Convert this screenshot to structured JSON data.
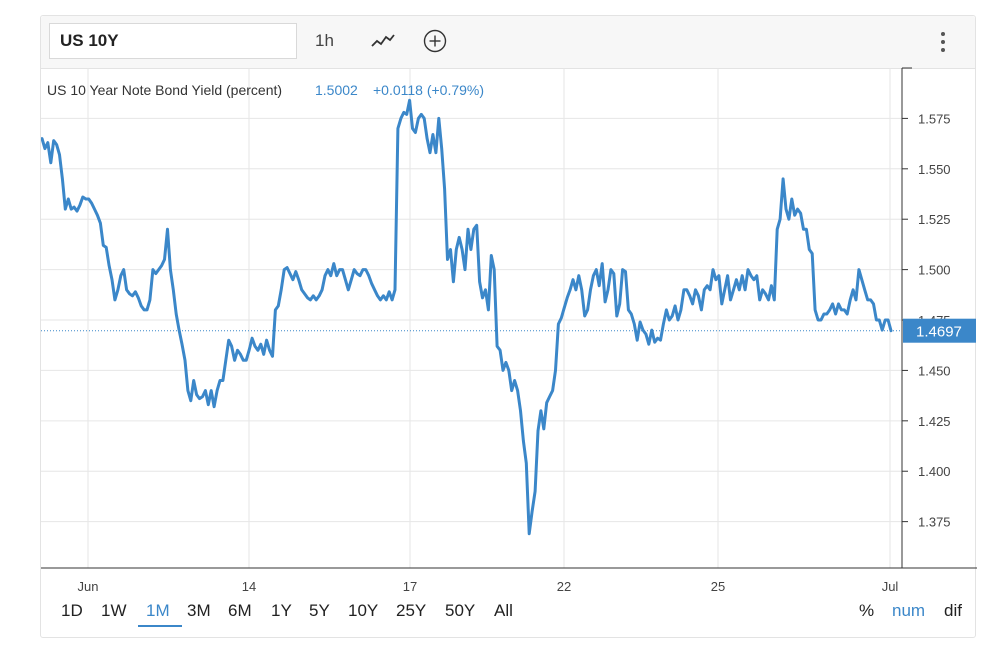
{
  "toolbar": {
    "symbol": "US 10Y",
    "interval": "1h",
    "icons": [
      "line-style-icon",
      "add-circle-icon",
      "more-vertical-icon"
    ]
  },
  "legend": {
    "title": "US 10 Year Note Bond Yield (percent)",
    "value": "1.5002",
    "change": "+0.0118 (+0.79%)"
  },
  "last_price_label": "1.4697",
  "periods": [
    "1D",
    "1W",
    "1M",
    "3M",
    "6M",
    "1Y",
    "5Y",
    "10Y",
    "25Y",
    "50Y",
    "All"
  ],
  "active_period": "1M",
  "scale_options": [
    "%",
    "num",
    "dif"
  ],
  "active_scale": "num",
  "colors": {
    "line": "#3b87c9",
    "accent": "#3b87c9",
    "grid": "#e6e6e6"
  },
  "chart_data": {
    "type": "line",
    "x_tick_labels": [
      "Jun",
      "14",
      "17",
      "22",
      "25",
      "Jul"
    ],
    "y_tick_labels": [
      "1.375",
      "1.400",
      "1.425",
      "1.450",
      "1.475",
      "1.500",
      "1.525",
      "1.550",
      "1.575"
    ],
    "ylim": [
      1.352,
      1.6
    ],
    "y_axis_position": "right",
    "grid": true,
    "last_value": 1.4697,
    "series": [
      {
        "values": [
          1.565,
          1.56,
          1.563,
          1.553,
          1.564,
          1.562,
          1.557,
          1.545,
          1.53,
          1.535,
          1.53,
          1.531,
          1.529,
          1.532,
          1.536,
          1.535,
          1.535,
          1.533,
          1.53,
          1.527,
          1.523,
          1.512,
          1.511,
          1.502,
          1.495,
          1.485,
          1.49,
          1.497,
          1.5,
          1.49,
          1.488,
          1.487,
          1.489,
          1.486,
          1.482,
          1.48,
          1.48,
          1.485,
          1.5,
          1.498,
          1.5,
          1.502,
          1.505,
          1.52,
          1.5,
          1.49,
          1.478,
          1.47,
          1.463,
          1.455,
          1.44,
          1.435,
          1.445,
          1.438,
          1.436,
          1.437,
          1.44,
          1.433,
          1.44,
          1.432,
          1.44,
          1.445,
          1.445,
          1.455,
          1.465,
          1.462,
          1.455,
          1.46,
          1.458,
          1.455,
          1.455,
          1.46,
          1.466,
          1.462,
          1.46,
          1.463,
          1.458,
          1.465,
          1.46,
          1.457,
          1.48,
          1.482,
          1.49,
          1.5,
          1.501,
          1.498,
          1.495,
          1.499,
          1.495,
          1.49,
          1.488,
          1.486,
          1.485,
          1.487,
          1.485,
          1.487,
          1.49,
          1.497,
          1.5,
          1.497,
          1.503,
          1.497,
          1.5,
          1.5,
          1.495,
          1.49,
          1.495,
          1.5,
          1.498,
          1.497,
          1.5,
          1.5,
          1.497,
          1.493,
          1.49,
          1.487,
          1.485,
          1.487,
          1.485,
          1.489,
          1.485,
          1.49,
          1.57,
          1.575,
          1.578,
          1.577,
          1.584,
          1.57,
          1.568,
          1.575,
          1.577,
          1.575,
          1.565,
          1.558,
          1.567,
          1.558,
          1.575,
          1.56,
          1.54,
          1.505,
          1.51,
          1.494,
          1.51,
          1.516,
          1.51,
          1.5,
          1.52,
          1.51,
          1.52,
          1.522,
          1.494,
          1.486,
          1.49,
          1.48,
          1.507,
          1.5,
          1.462,
          1.46,
          1.45,
          1.454,
          1.45,
          1.44,
          1.445,
          1.44,
          1.43,
          1.415,
          1.404,
          1.369,
          1.38,
          1.39,
          1.42,
          1.43,
          1.421,
          1.434,
          1.437,
          1.44,
          1.45,
          1.473,
          1.476,
          1.481,
          1.486,
          1.49,
          1.495,
          1.49,
          1.497,
          1.49,
          1.477,
          1.48,
          1.49,
          1.497,
          1.5,
          1.492,
          1.503,
          1.484,
          1.49,
          1.5,
          1.498,
          1.477,
          1.483,
          1.5,
          1.499,
          1.48,
          1.478,
          1.473,
          1.465,
          1.474,
          1.47,
          1.468,
          1.463,
          1.47,
          1.464,
          1.466,
          1.465,
          1.473,
          1.48,
          1.475,
          1.477,
          1.482,
          1.475,
          1.48,
          1.49,
          1.49,
          1.487,
          1.483,
          1.49,
          1.487,
          1.48,
          1.49,
          1.492,
          1.49,
          1.5,
          1.495,
          1.497,
          1.483,
          1.49,
          1.497,
          1.485,
          1.49,
          1.495,
          1.49,
          1.497,
          1.49,
          1.5,
          1.497,
          1.495,
          1.497,
          1.485,
          1.49,
          1.488,
          1.485,
          1.492,
          1.485,
          1.52,
          1.525,
          1.545,
          1.53,
          1.525,
          1.535,
          1.527,
          1.53,
          1.528,
          1.52,
          1.52,
          1.51,
          1.508,
          1.48,
          1.475,
          1.475,
          1.478,
          1.478,
          1.48,
          1.483,
          1.478,
          1.483,
          1.48,
          1.48,
          1.478,
          1.485,
          1.49,
          1.485,
          1.5,
          1.495,
          1.49,
          1.485,
          1.485,
          1.483,
          1.475,
          1.475,
          1.47,
          1.475,
          1.475,
          1.4697
        ]
      }
    ]
  }
}
